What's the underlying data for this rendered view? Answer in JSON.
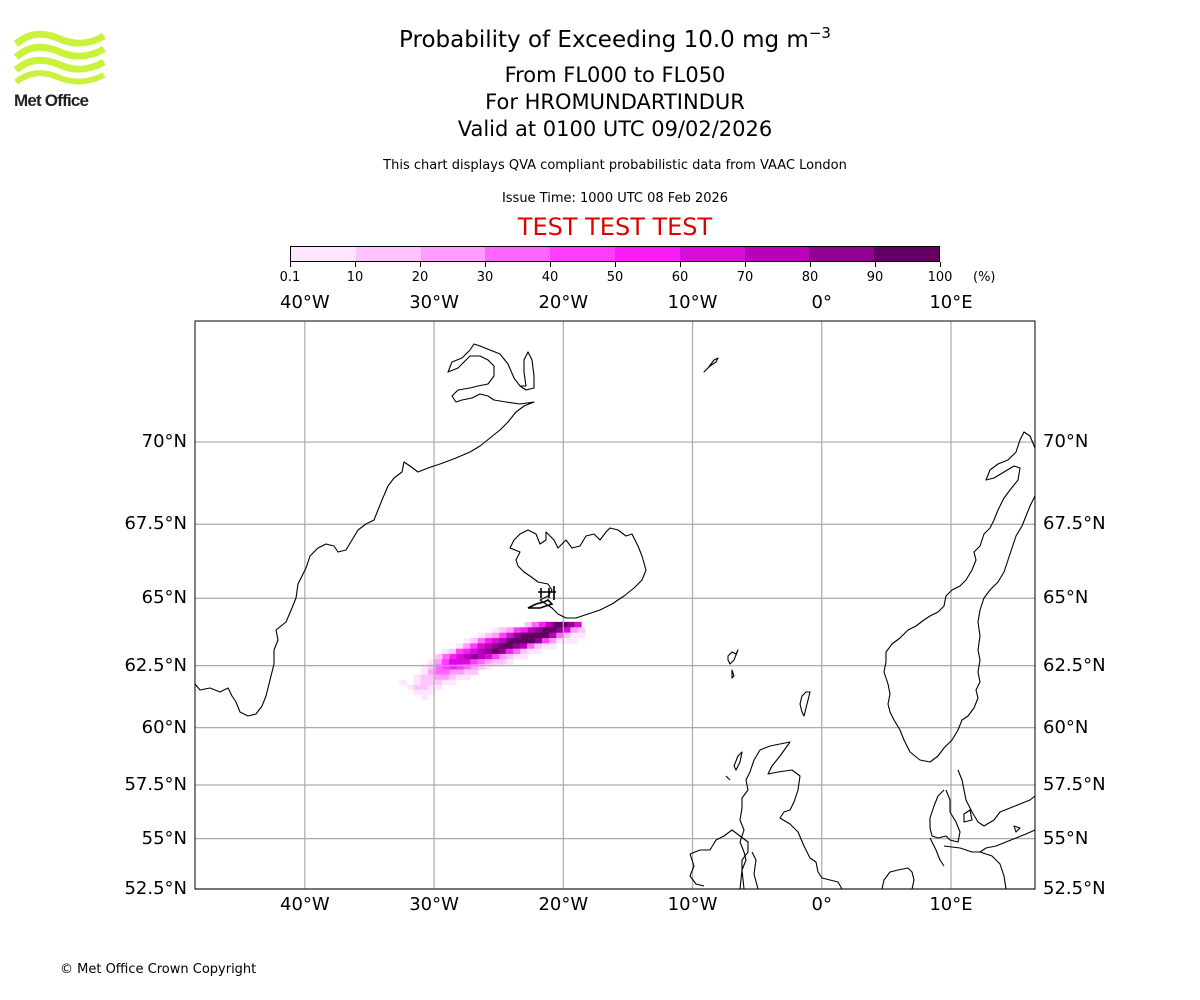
{
  "header": {
    "title_main": "Probability of Exceeding 10.0 mg m",
    "title_superscript": "−3",
    "level_range": "From FL000 to FL050",
    "volcano": "For HROMUNDARTINDUR",
    "valid_time": "Valid at 0100 UTC 09/02/2026",
    "description": "This chart displays QVA compliant probabilistic data from VAAC London",
    "issue_time": "Issue Time: 1000 UTC 08 Feb 2026",
    "test_banner": "TEST TEST TEST"
  },
  "logo": {
    "text": "Met Office",
    "color": "#c8f23c"
  },
  "footer": {
    "copyright": "© Met Office Crown Copyright"
  },
  "colorbar": {
    "unit": "(%)",
    "ticks": [
      "0.1",
      "10",
      "20",
      "30",
      "40",
      "50",
      "60",
      "70",
      "80",
      "90",
      "100"
    ],
    "colors": [
      "#ffe6ff",
      "#ffc4ff",
      "#ff9dff",
      "#ff66ff",
      "#ff3cff",
      "#f81cf8",
      "#d80cd8",
      "#bb00bb",
      "#920092",
      "#620062"
    ]
  },
  "chart_data": {
    "type": "heatmap",
    "title": "Probability of Exceeding 10.0 mg m−3",
    "projection": "mercator",
    "lon_range": [
      -48.5,
      16.5
    ],
    "lat_range": [
      52.5,
      73.2
    ],
    "lon_ticks": [
      -40,
      -30,
      -20,
      -10,
      0,
      10
    ],
    "lon_tick_labels": [
      "40°W",
      "30°W",
      "20°W",
      "10°W",
      "0°",
      "10°E"
    ],
    "lat_ticks": [
      52.5,
      55,
      57.5,
      60,
      62.5,
      65,
      67.5,
      70
    ],
    "lat_tick_labels": [
      "52.5°N",
      "55°N",
      "57.5°N",
      "60°N",
      "62.5°N",
      "65°N",
      "67.5°N",
      "70°N"
    ],
    "grid": true,
    "volcano_location": {
      "name": "HROMUNDARTINDUR",
      "lon": -21.2,
      "lat": 64.1
    },
    "cell_size_deg": 0.55,
    "plume_rows": [
      {
        "lat": 64.05,
        "lon_start": -23.0,
        "values": [
          15,
          35,
          55,
          75,
          92,
          95,
          85,
          60
        ]
      },
      {
        "lat": 63.85,
        "lon_start": -25.5,
        "values": [
          8,
          15,
          25,
          40,
          55,
          72,
          85,
          92,
          95,
          88,
          65,
          25,
          10
        ]
      },
      {
        "lat": 63.65,
        "lon_start": -26.6,
        "values": [
          5,
          12,
          25,
          45,
          62,
          80,
          92,
          95,
          95,
          90,
          70,
          30,
          12,
          5,
          5
        ]
      },
      {
        "lat": 63.45,
        "lon_start": -27.7,
        "values": [
          5,
          15,
          30,
          50,
          65,
          78,
          90,
          95,
          95,
          92,
          85,
          45,
          20,
          8,
          5,
          5
        ]
      },
      {
        "lat": 63.25,
        "lon_start": -28.3,
        "values": [
          8,
          25,
          45,
          60,
          75,
          88,
          94,
          92,
          85,
          70,
          35,
          15,
          8,
          5
        ]
      },
      {
        "lat": 63.05,
        "lon_start": -29.4,
        "values": [
          5,
          15,
          40,
          55,
          65,
          78,
          88,
          90,
          80,
          55,
          30,
          15,
          8,
          5
        ]
      },
      {
        "lat": 62.85,
        "lon_start": -29.9,
        "values": [
          10,
          30,
          50,
          65,
          75,
          80,
          72,
          60,
          45,
          25,
          12,
          8,
          5
        ]
      },
      {
        "lat": 62.65,
        "lon_start": -30.5,
        "values": [
          8,
          25,
          45,
          60,
          65,
          60,
          45,
          35,
          25,
          15,
          10,
          5
        ]
      },
      {
        "lat": 62.45,
        "lon_start": -31.0,
        "values": [
          5,
          15,
          30,
          45,
          50,
          40,
          30,
          20,
          12,
          8
        ]
      },
      {
        "lat": 62.25,
        "lon_start": -31.0,
        "values": [
          8,
          20,
          30,
          35,
          28,
          20,
          15,
          10
        ]
      },
      {
        "lat": 62.05,
        "lon_start": -31.6,
        "values": [
          5,
          10,
          15,
          25,
          20,
          12,
          8,
          5
        ]
      },
      {
        "lat": 61.85,
        "lon_start": -32.7,
        "values": [
          5,
          0,
          8,
          12,
          18,
          15,
          8,
          5
        ]
      },
      {
        "lat": 61.65,
        "lon_start": -32.1,
        "values": [
          5,
          10,
          12,
          8,
          5
        ]
      },
      {
        "lat": 61.45,
        "lon_start": -31.6,
        "values": [
          5,
          8,
          5
        ]
      },
      {
        "lat": 61.25,
        "lon_start": -31.0,
        "values": [
          5
        ]
      }
    ]
  }
}
